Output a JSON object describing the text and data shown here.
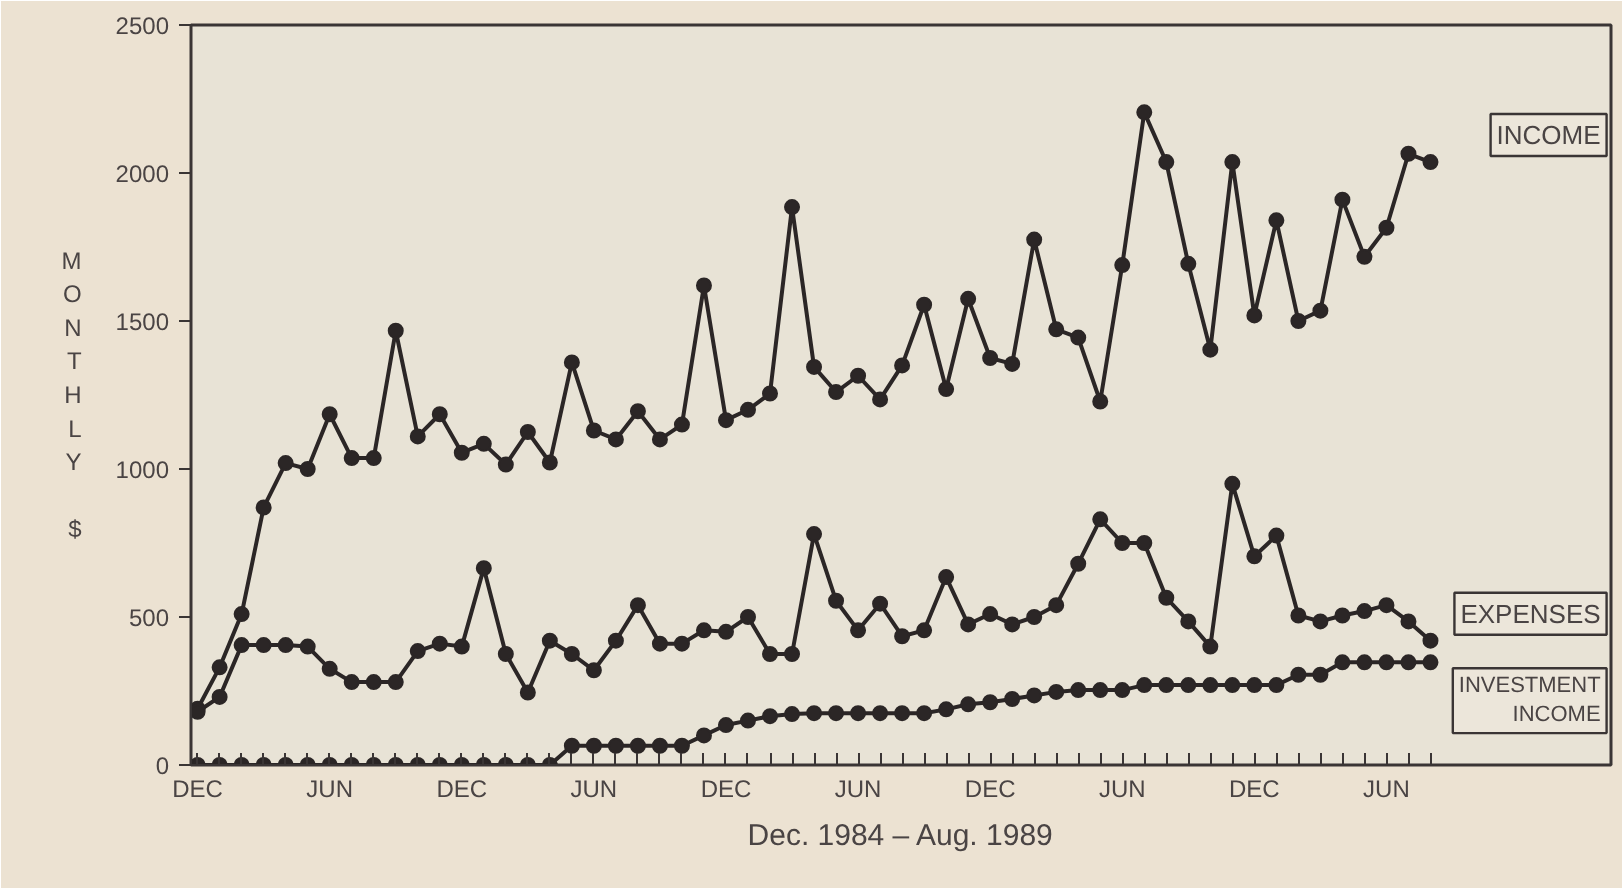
{
  "chart_data": {
    "type": "line",
    "xlabel": "Dec. 1984 – Aug. 1989",
    "ylabel": "MONTHLY $",
    "categories": [
      "DEC",
      null,
      null,
      null,
      null,
      null,
      "JUN",
      null,
      null,
      null,
      null,
      null,
      "DEC",
      null,
      null,
      null,
      null,
      null,
      "JUN",
      null,
      null,
      null,
      null,
      null,
      "DEC",
      null,
      null,
      null,
      null,
      null,
      "JUN",
      null,
      null,
      null,
      null,
      null,
      "DEC",
      null,
      null,
      null,
      null,
      null,
      "JUN",
      null,
      null,
      null,
      null,
      null,
      "DEC",
      null,
      null,
      null,
      null,
      null,
      "JUN",
      null,
      null
    ],
    "series": [
      {
        "name": "INCOME",
        "color": "#2b2626",
        "values": [
          190,
          330,
          510,
          870,
          1020,
          1000,
          1185,
          1037,
          1037,
          1467,
          1110,
          1185,
          1055,
          1085,
          1015,
          1125,
          1022,
          1360,
          1130,
          1100,
          1195,
          1100,
          1150,
          1620,
          1165,
          1200,
          1255,
          1885,
          1345,
          1260,
          1315,
          1235,
          1350,
          1555,
          1270,
          1575,
          1375,
          1355,
          1775,
          1472,
          1444,
          1228,
          1689,
          2205,
          2037,
          1693,
          1403,
          2037,
          1519,
          1840,
          1500,
          1535,
          1910,
          1717,
          1815,
          2065,
          2037
        ]
      },
      {
        "name": "EXPENSES",
        "color": "#2b2626",
        "values": [
          180,
          230,
          405,
          405,
          405,
          400,
          325,
          280,
          280,
          280,
          385,
          410,
          400,
          665,
          375,
          245,
          420,
          375,
          320,
          420,
          540,
          410,
          410,
          455,
          450,
          500,
          375,
          375,
          780,
          555,
          455,
          545,
          435,
          455,
          635,
          475,
          510,
          475,
          500,
          540,
          680,
          830,
          750,
          750,
          565,
          485,
          400,
          950,
          705,
          775,
          505,
          485,
          505,
          520,
          540,
          485,
          420
        ]
      },
      {
        "name": "INVESTMENT INCOME",
        "color": "#2b2626",
        "values": [
          0,
          0,
          0,
          0,
          0,
          0,
          0,
          0,
          0,
          0,
          0,
          0,
          0,
          0,
          0,
          0,
          0,
          65,
          65,
          65,
          65,
          65,
          65,
          100,
          135,
          150,
          165,
          172,
          175,
          175,
          175,
          175,
          175,
          175,
          188,
          205,
          212,
          223,
          235,
          247,
          253,
          253,
          253,
          270,
          270,
          270,
          270,
          270,
          270,
          270,
          305,
          305,
          347,
          347,
          347,
          347,
          347
        ]
      }
    ],
    "ylim": [
      0,
      2500
    ],
    "yticks": [
      0,
      500,
      1000,
      1500,
      2000,
      2500
    ],
    "grid": false,
    "legend": false,
    "marker": "circle",
    "line_style": "solid"
  }
}
